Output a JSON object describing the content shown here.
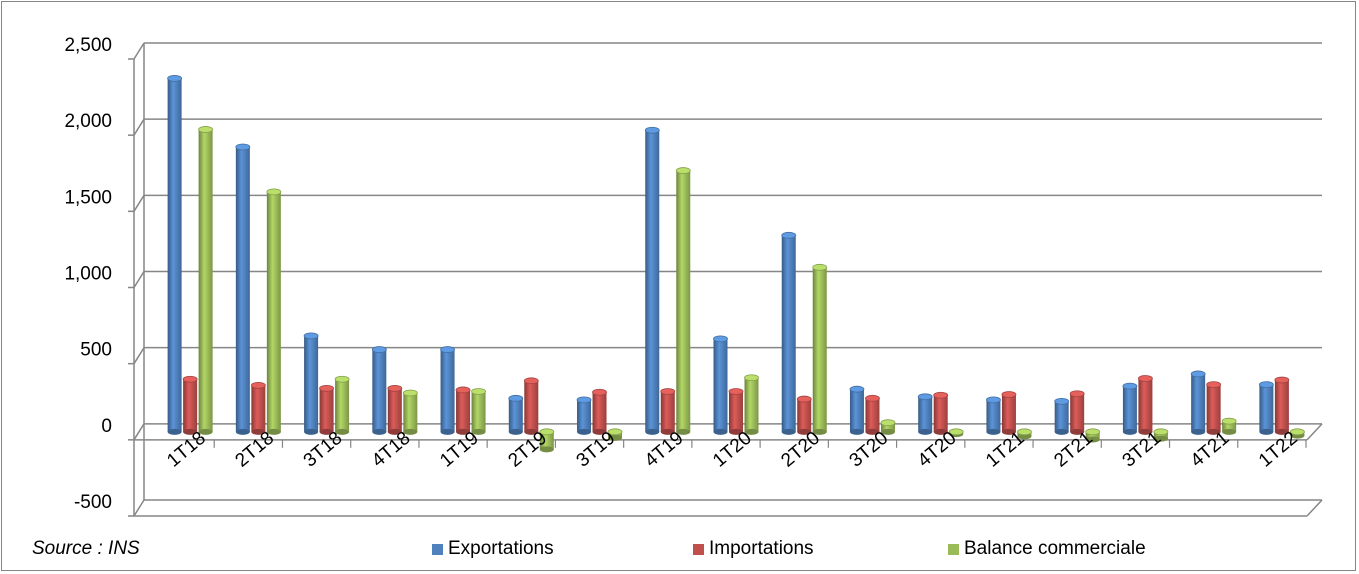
{
  "source_note": "Source : INS",
  "chart_data": {
    "type": "bar",
    "categories": [
      "1T18",
      "2T18",
      "3T18",
      "4T18",
      "1T19",
      "2T19",
      "3T19",
      "4T19",
      "1T20",
      "2T20",
      "3T20",
      "4T20",
      "1T21",
      "2T21",
      "3T21",
      "4T21",
      "1T22"
    ],
    "series": [
      {
        "name": "Exportations",
        "color": "#4F81BD",
        "values": [
          2320,
          1870,
          630,
          540,
          540,
          220,
          210,
          1980,
          610,
          1290,
          280,
          230,
          210,
          200,
          300,
          380,
          310
        ]
      },
      {
        "name": "Importations",
        "color": "#C0504D",
        "values": [
          345,
          305,
          285,
          285,
          275,
          335,
          260,
          265,
          265,
          215,
          220,
          240,
          245,
          250,
          350,
          310,
          340
        ]
      },
      {
        "name": "Balance commerciale",
        "color": "#9BBB59",
        "values": [
          1985,
          1575,
          345,
          255,
          265,
          -115,
          -40,
          1715,
          355,
          1080,
          60,
          -15,
          -30,
          -50,
          -45,
          70,
          -25
        ]
      }
    ],
    "y_tick_labels": [
      "2,500",
      "2,000",
      "1,500",
      "1,000",
      "500",
      "0",
      "-500"
    ],
    "y_tick_values": [
      2500,
      2000,
      1500,
      1000,
      500,
      0,
      -500
    ],
    "ylim": [
      -500,
      2500
    ],
    "grid": true,
    "legend_position": "bottom"
  }
}
